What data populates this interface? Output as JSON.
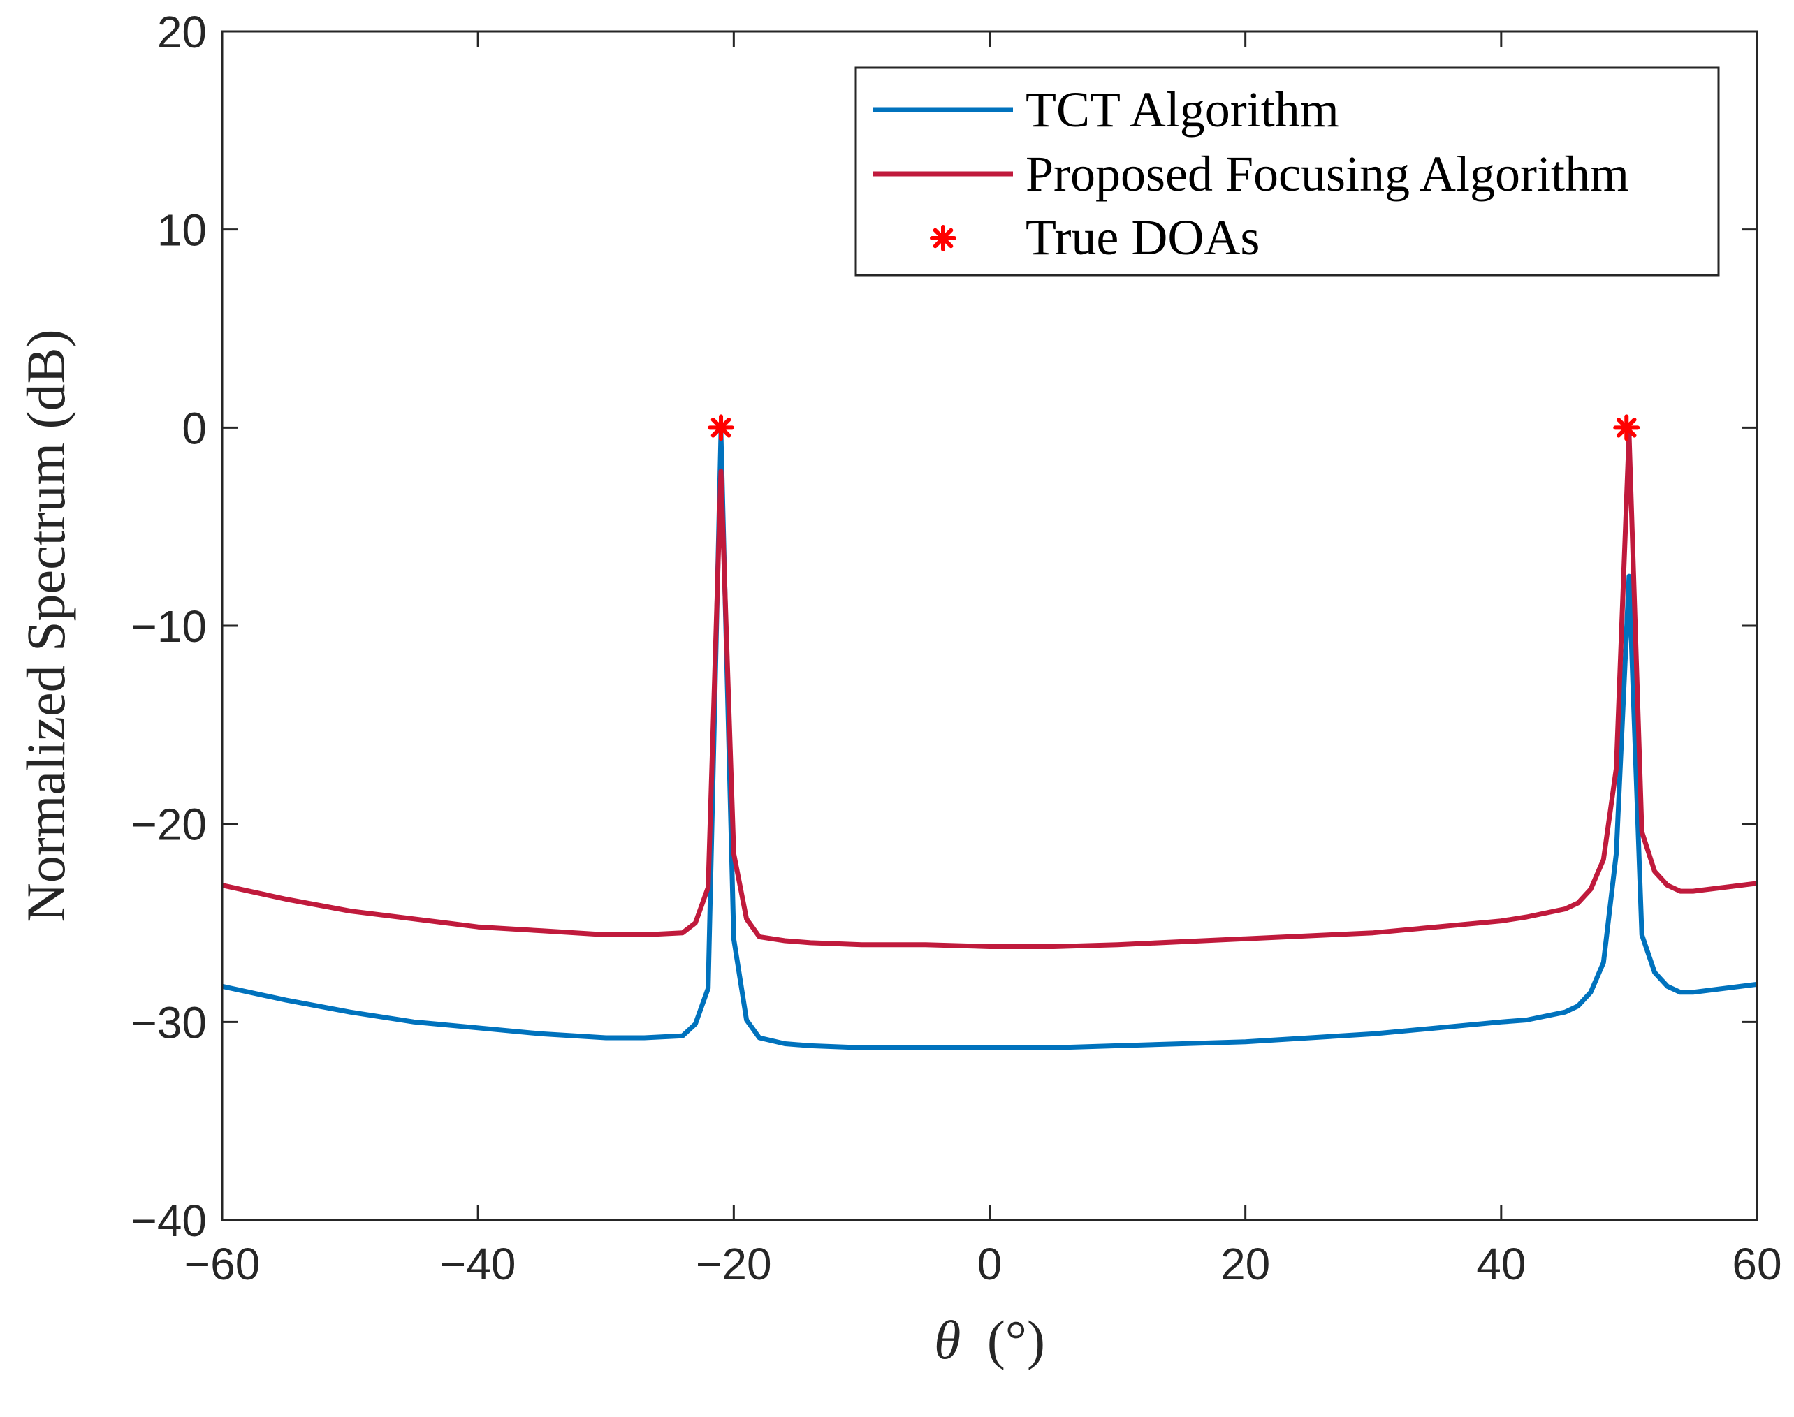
{
  "chart_data": {
    "type": "line",
    "title": "",
    "xlabel_symbol": "θ",
    "xlabel_unit": "(°)",
    "ylabel": "Normalized Spectrum (dB)",
    "xlim": [
      -60,
      60
    ],
    "ylim": [
      -40,
      20
    ],
    "xticks": [
      -60,
      -40,
      -20,
      0,
      20,
      40,
      60
    ],
    "yticks": [
      20,
      10,
      0,
      -10,
      -20,
      -30,
      -40
    ],
    "xtick_labels": [
      "−60",
      "−40",
      "−20",
      "0",
      "20",
      "40",
      "60"
    ],
    "ytick_labels": [
      "20",
      "10",
      "0",
      "−10",
      "−20",
      "−30",
      "−40"
    ],
    "grid": false,
    "legend_position": "top-right",
    "series": [
      {
        "name": "TCT Algorithm",
        "color": "#0072BD",
        "x": [
          -60,
          -55,
          -50,
          -45,
          -40,
          -35,
          -30,
          -27,
          -24,
          -23,
          -22,
          -21,
          -20,
          -19,
          -18,
          -16,
          -14,
          -10,
          -5,
          0,
          5,
          10,
          20,
          30,
          40,
          42,
          45,
          46,
          47,
          48,
          49,
          50,
          51,
          52,
          53,
          54,
          55,
          60
        ],
        "y": [
          -28.2,
          -28.9,
          -29.5,
          -30.0,
          -30.3,
          -30.6,
          -30.8,
          -30.8,
          -30.7,
          -30.1,
          -28.3,
          -0.3,
          -25.8,
          -29.9,
          -30.8,
          -31.1,
          -31.2,
          -31.3,
          -31.3,
          -31.3,
          -31.3,
          -31.2,
          -31.0,
          -30.6,
          -30.0,
          -29.9,
          -29.5,
          -29.2,
          -28.5,
          -27.0,
          -21.5,
          -7.5,
          -25.6,
          -27.5,
          -28.2,
          -28.5,
          -28.5,
          -28.1
        ]
      },
      {
        "name": "Proposed Focusing Algorithm",
        "color": "#C01A3C",
        "x": [
          -60,
          -55,
          -50,
          -45,
          -40,
          -35,
          -30,
          -27,
          -24,
          -23,
          -22,
          -21,
          -20,
          -19,
          -18,
          -16,
          -14,
          -10,
          -5,
          0,
          5,
          10,
          20,
          30,
          40,
          42,
          45,
          46,
          47,
          48,
          49,
          50,
          51,
          52,
          53,
          54,
          55,
          60
        ],
        "y": [
          -23.1,
          -23.8,
          -24.4,
          -24.8,
          -25.2,
          -25.4,
          -25.6,
          -25.6,
          -25.5,
          -25.0,
          -23.2,
          -2.2,
          -21.5,
          -24.8,
          -25.7,
          -25.9,
          -26.0,
          -26.1,
          -26.1,
          -26.2,
          -26.2,
          -26.1,
          -25.8,
          -25.5,
          -24.9,
          -24.7,
          -24.3,
          -24.0,
          -23.3,
          -21.8,
          -17.2,
          -0.3,
          -20.4,
          -22.4,
          -23.1,
          -23.4,
          -23.4,
          -23.0
        ]
      },
      {
        "name": "True DOAs",
        "color": "#FF0000",
        "marker": "asterisk",
        "x": [
          -21,
          49.8
        ],
        "y": [
          0,
          0
        ]
      }
    ]
  }
}
